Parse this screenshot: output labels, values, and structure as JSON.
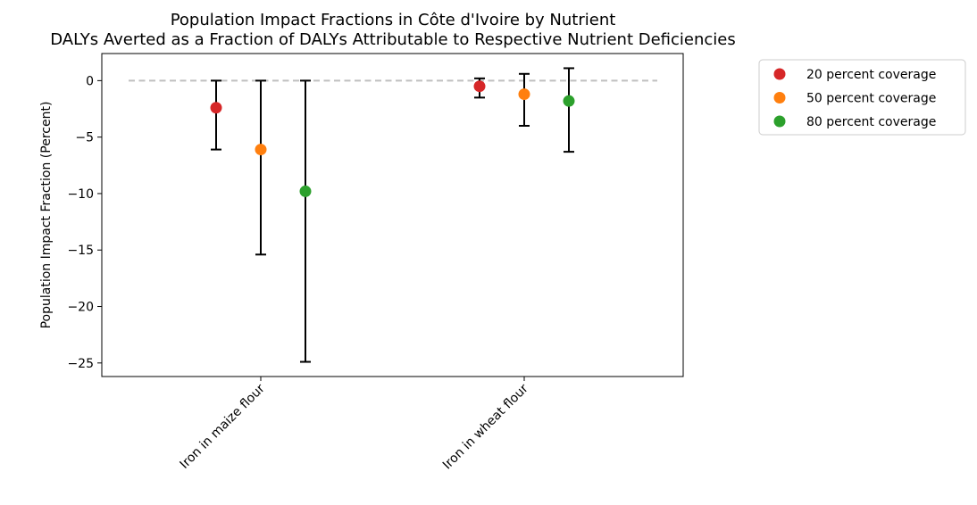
{
  "chart_data": {
    "type": "scatter",
    "title": "Population Impact Fractions in Côte d'Ivoire by Nutrient",
    "subtitle": "DALYs Averted as a Fraction of DALYs Attributable to Respective Nutrient Deficiencies",
    "ylabel": "Population Impact Fraction (Percent)",
    "xlabel": "",
    "categories": [
      "Iron in maize flour",
      "Iron in wheat flour"
    ],
    "ylim": [
      -26.2,
      2.4
    ],
    "yticks": [
      0,
      -5,
      -10,
      -15,
      -20,
      -25
    ],
    "ytick_labels": [
      "0",
      "−5",
      "−10",
      "−15",
      "−20",
      "−25"
    ],
    "reference_line": 0,
    "grid": false,
    "legend_position": "outside-right",
    "series": [
      {
        "name": "20 percent coverage",
        "color": "#d62728",
        "values": [
          -2.4,
          -0.5
        ],
        "lower": [
          -6.1,
          -1.5
        ],
        "upper": [
          0.0,
          0.2
        ]
      },
      {
        "name": "50 percent coverage",
        "color": "#ff7f0e",
        "values": [
          -6.1,
          -1.2
        ],
        "lower": [
          -15.4,
          -4.0
        ],
        "upper": [
          0.0,
          0.6
        ]
      },
      {
        "name": "80 percent coverage",
        "color": "#2ca02c",
        "values": [
          -9.8,
          -1.8
        ],
        "lower": [
          -24.9,
          -6.3
        ],
        "upper": [
          0.0,
          1.1
        ]
      }
    ]
  }
}
